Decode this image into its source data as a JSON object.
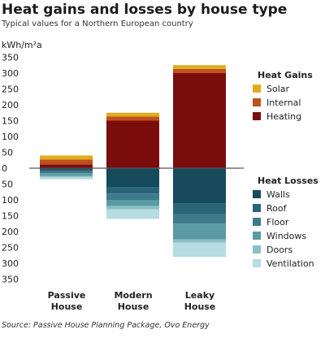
{
  "title": "Heat gains and losses by house type",
  "subtitle": "Typical values for a Northern European country",
  "source": "Source: Passive House Planning Package, Ovo Energy",
  "chart_data": {
    "type": "bar",
    "stacked": true,
    "ylabel": "kWh/m²a",
    "ylim": [
      -350,
      350
    ],
    "yticks": [
      350,
      300,
      250,
      200,
      150,
      100,
      50,
      0,
      50,
      100,
      150,
      200,
      250,
      300,
      350
    ],
    "categories": [
      {
        "line1": "Passive",
        "line2": "House"
      },
      {
        "line1": "Modern",
        "line2": "House"
      },
      {
        "line1": "Leaky",
        "line2": "House"
      }
    ],
    "gains_title": "Heat Gains",
    "losses_title": "Heat Losses",
    "gains": [
      {
        "name": "Heating",
        "color": "#7a0c0c",
        "values": [
          12,
          150,
          300
        ]
      },
      {
        "name": "Internal",
        "color": "#c0501c",
        "values": [
          15,
          13,
          13
        ]
      },
      {
        "name": "Solar",
        "color": "#e0ac1c",
        "values": [
          13,
          12,
          12
        ]
      }
    ],
    "losses": [
      {
        "name": "Walls",
        "color": "#174a5c",
        "values": [
          5,
          60,
          112
        ]
      },
      {
        "name": "Roof",
        "color": "#2b6378",
        "values": [
          5,
          20,
          33
        ]
      },
      {
        "name": "Floor",
        "color": "#3e7a8a",
        "values": [
          6,
          20,
          30
        ]
      },
      {
        "name": "Windows",
        "color": "#5a9aa3",
        "values": [
          9,
          20,
          50
        ]
      },
      {
        "name": "Doors",
        "color": "#8bc0c6",
        "values": [
          3,
          10,
          10
        ]
      },
      {
        "name": "Ventilation",
        "color": "#b5dcdf",
        "values": [
          7,
          30,
          45
        ]
      }
    ],
    "legend_gains_order": [
      "Solar",
      "Internal",
      "Heating"
    ],
    "legend_losses_order": [
      "Walls",
      "Roof",
      "Floor",
      "Windows",
      "Doors",
      "Ventilation"
    ]
  }
}
